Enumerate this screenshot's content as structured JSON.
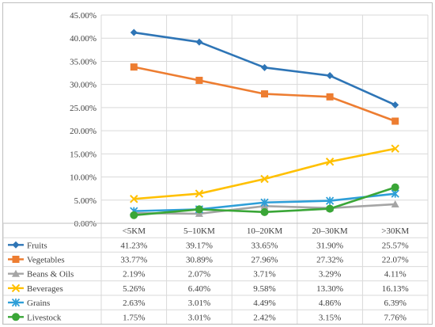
{
  "chart_data": {
    "type": "line",
    "title": "",
    "xlabel": "",
    "ylabel": "",
    "categories": [
      "<5KM",
      "5–10KM",
      "10–20KM",
      "20–30KM",
      ">30KM"
    ],
    "ylim": [
      0,
      45
    ],
    "y_ticks": [
      "0.00%",
      "5.00%",
      "10.00%",
      "15.00%",
      "20.00%",
      "25.00%",
      "30.00%",
      "35.00%",
      "40.00%",
      "45.00%"
    ],
    "grid": true,
    "legend": "data-table",
    "series": [
      {
        "name": "Fruits",
        "color": "#2e75b6",
        "marker": "diamond",
        "values": [
          41.23,
          39.17,
          33.65,
          31.9,
          25.57
        ],
        "labels": [
          "41.23%",
          "39.17%",
          "33.65%",
          "31.90%",
          "25.57%"
        ]
      },
      {
        "name": "Vegetables",
        "color": "#ed7d31",
        "marker": "square",
        "values": [
          33.77,
          30.89,
          27.96,
          27.32,
          22.07
        ],
        "labels": [
          "33.77%",
          "30.89%",
          "27.96%",
          "27.32%",
          "22.07%"
        ]
      },
      {
        "name": "Beans & Oils",
        "color": "#a5a5a5",
        "marker": "triangle",
        "values": [
          2.19,
          2.07,
          3.71,
          3.29,
          4.11
        ],
        "labels": [
          "2.19%",
          "2.07%",
          "3.71%",
          "3.29%",
          "4.11%"
        ]
      },
      {
        "name": "Beverages",
        "color": "#ffc000",
        "marker": "x",
        "values": [
          5.26,
          6.4,
          9.58,
          13.3,
          16.13
        ],
        "labels": [
          "5.26%",
          "6.40%",
          "9.58%",
          "13.30%",
          "16.13%"
        ]
      },
      {
        "name": "Grains",
        "color": "#2e9fd8",
        "marker": "asterisk",
        "values": [
          2.63,
          3.01,
          4.49,
          4.86,
          6.39
        ],
        "labels": [
          "2.63%",
          "3.01%",
          "4.49%",
          "4.86%",
          "6.39%"
        ]
      },
      {
        "name": "Livestock",
        "color": "#3aa637",
        "marker": "circle",
        "values": [
          1.75,
          3.01,
          2.42,
          3.15,
          7.76
        ],
        "labels": [
          "1.75%",
          "3.01%",
          "2.42%",
          "3.15%",
          "7.76%"
        ]
      }
    ]
  }
}
